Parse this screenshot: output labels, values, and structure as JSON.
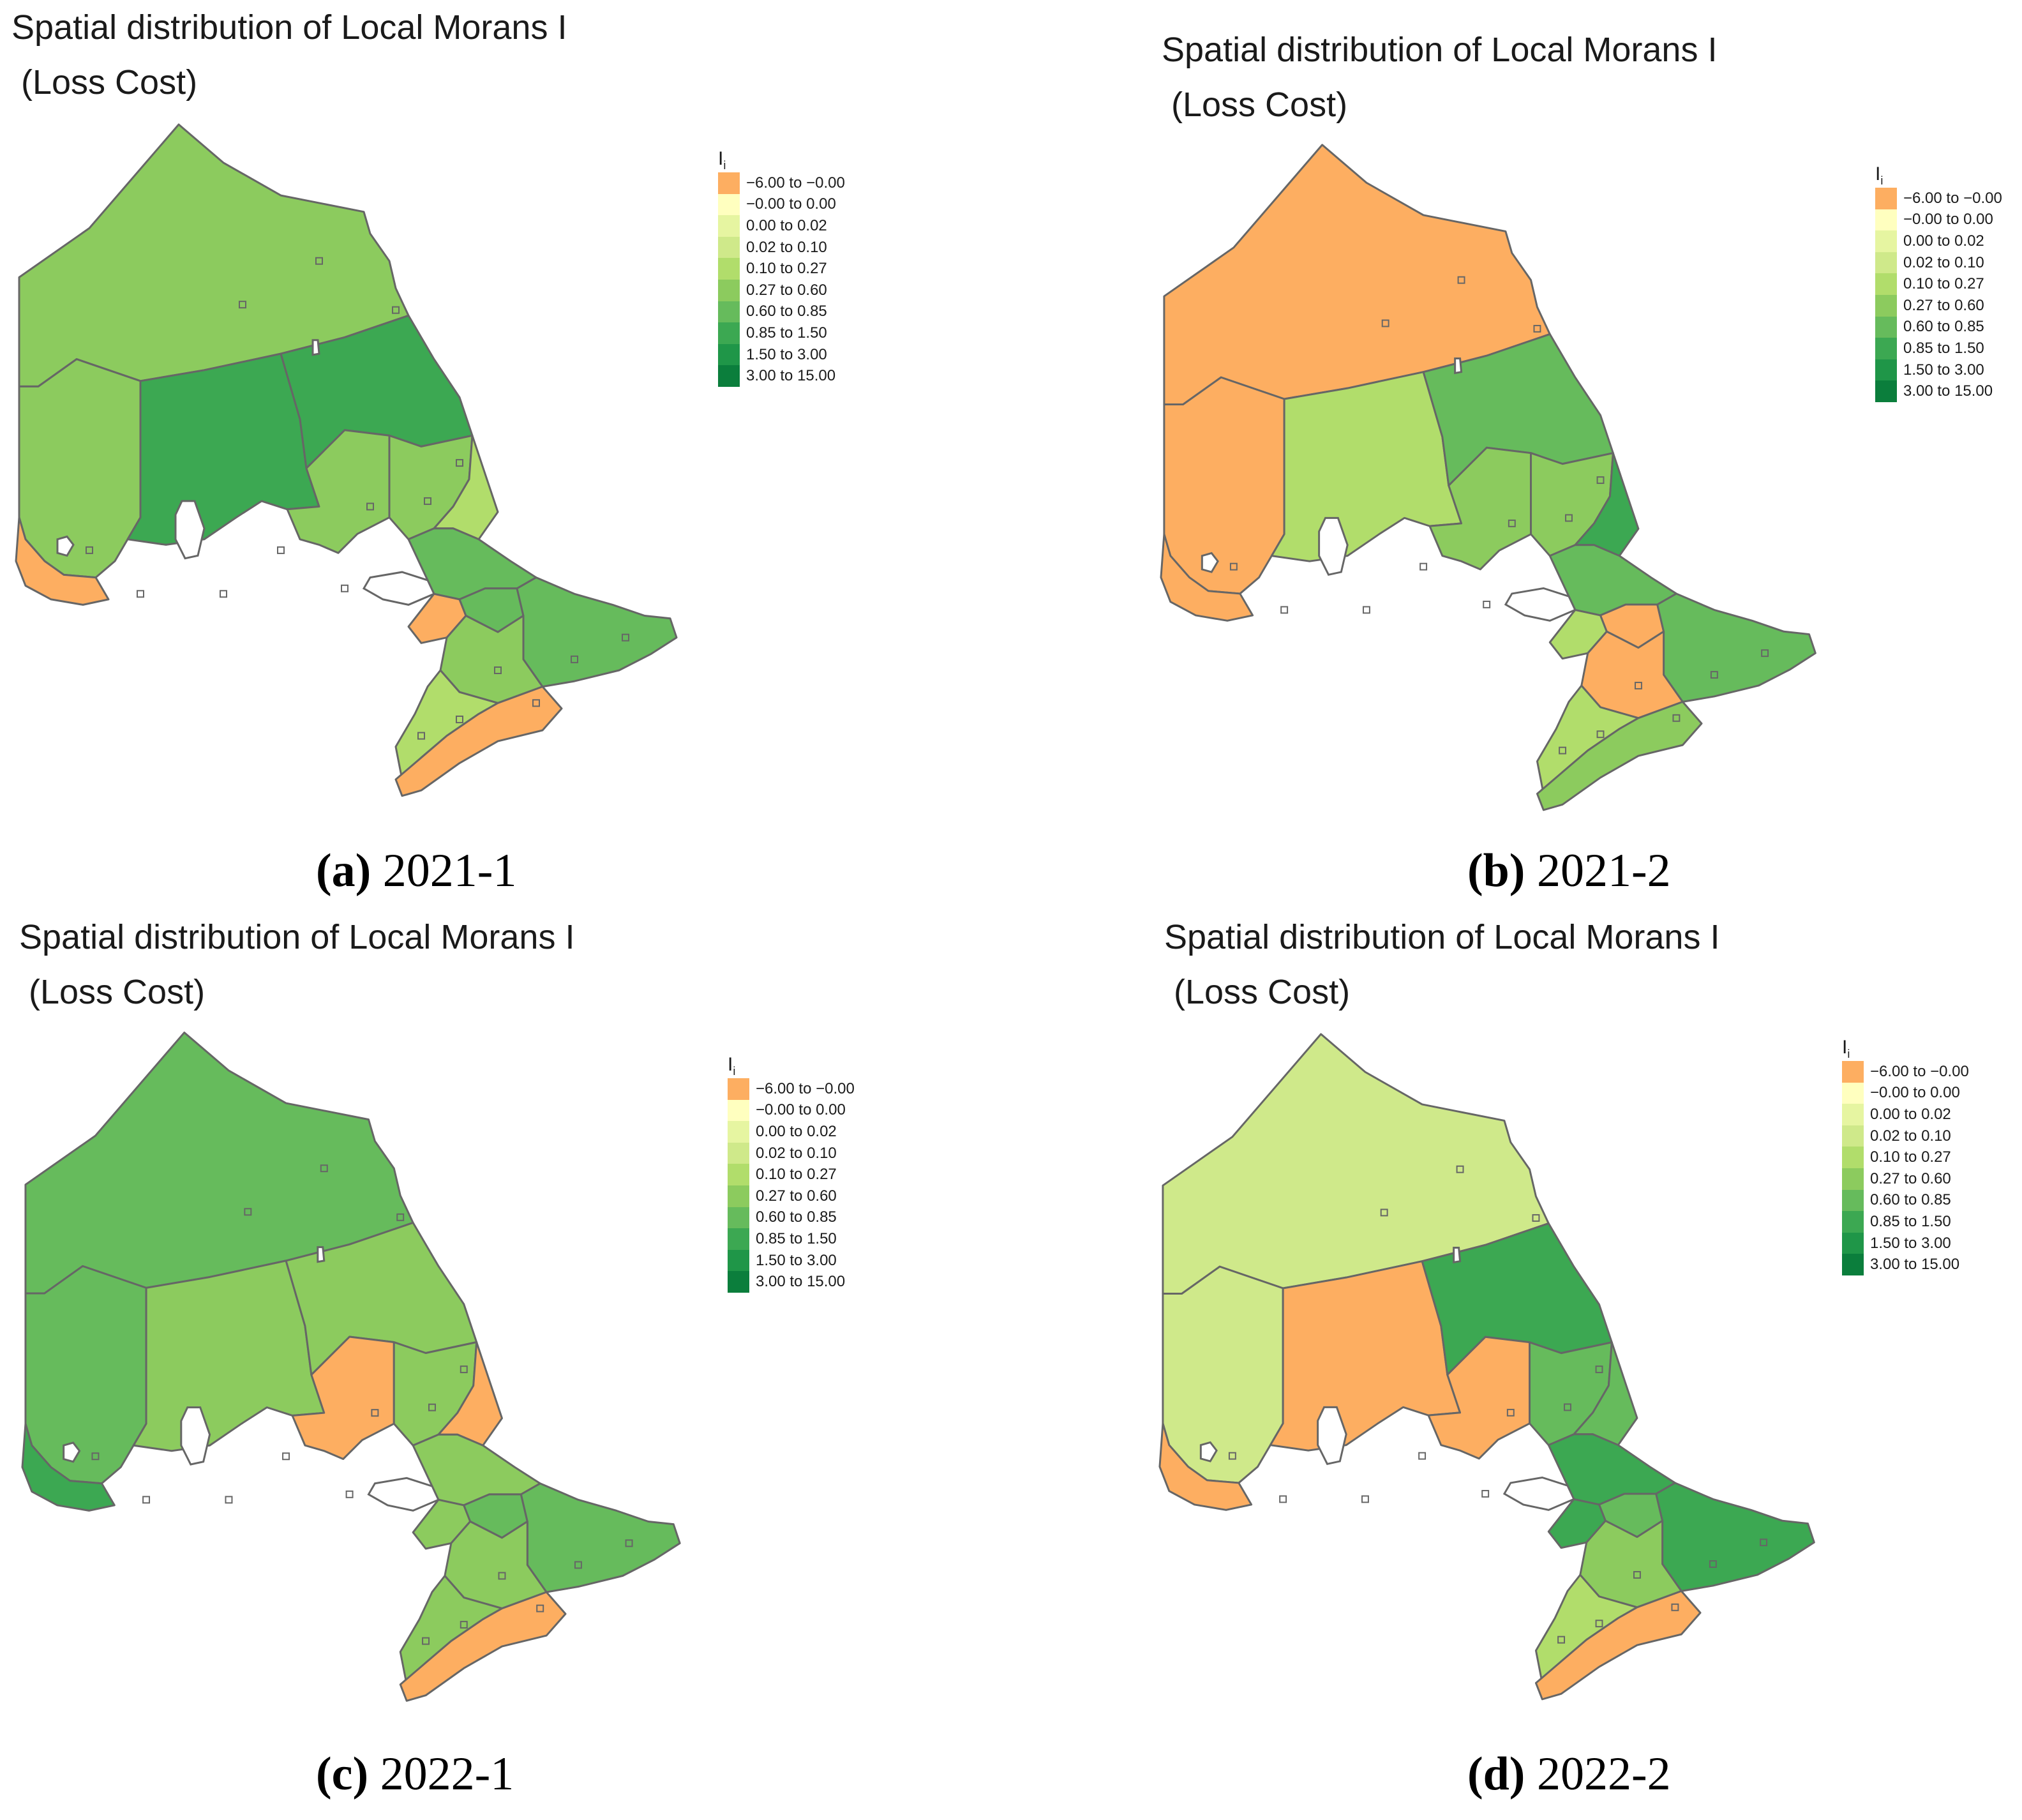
{
  "legend": {
    "title": "I",
    "title_sub": "i",
    "classes": [
      {
        "label": "−6.00 to −0.00",
        "color": "#fdae61"
      },
      {
        "label": "−0.00 to 0.00",
        "color": "#ffffbf"
      },
      {
        "label": "0.00 to 0.02",
        "color": "#e6f5a1"
      },
      {
        "label": "0.02 to 0.10",
        "color": "#cfe98a"
      },
      {
        "label": "0.10 to 0.27",
        "color": "#b1dd6b"
      },
      {
        "label": "0.27 to 0.60",
        "color": "#8ccb5e"
      },
      {
        "label": "0.60 to 0.85",
        "color": "#66bb5c"
      },
      {
        "label": "0.85 to 1.50",
        "color": "#3ca852"
      },
      {
        "label": "1.50 to 3.00",
        "color": "#1f9648"
      },
      {
        "label": "3.00 to 15.00",
        "color": "#0b7e3c"
      }
    ]
  },
  "boundary_color": "#666666",
  "panels": [
    {
      "title_line1": "Spatial distribution of Local Morans I",
      "title_line2": " (Loss Cost)",
      "caption_letter": "(a)",
      "caption_text": " 2021-1",
      "region_classes": {
        "far_north": 5,
        "northwest": 5,
        "rainy_river": 0,
        "thunder_bay": 7,
        "cochrane": 7,
        "algoma": 5,
        "sudbury": 5,
        "timiskaming": 4,
        "nipissing": 6,
        "parry_sound": 0,
        "muskoka": 6,
        "eastern": 6,
        "central": 5,
        "southwest": 4,
        "niagara": 0
      }
    },
    {
      "title_line1": "Spatial distribution of Local Morans I",
      "title_line2": " (Loss Cost)",
      "caption_letter": "(b)",
      "caption_text": " 2021-2",
      "region_classes": {
        "far_north": 0,
        "northwest": 0,
        "rainy_river": 0,
        "thunder_bay": 4,
        "cochrane": 6,
        "algoma": 5,
        "sudbury": 5,
        "timiskaming": 7,
        "nipissing": 6,
        "parry_sound": 4,
        "muskoka": 0,
        "eastern": 6,
        "central": 0,
        "southwest": 4,
        "niagara": 5
      }
    },
    {
      "title_line1": "Spatial distribution of Local Morans I",
      "title_line2": " (Loss Cost)",
      "caption_letter": "(c)",
      "caption_text": " 2022-1",
      "region_classes": {
        "far_north": 6,
        "northwest": 6,
        "rainy_river": 7,
        "thunder_bay": 5,
        "cochrane": 5,
        "algoma": 0,
        "sudbury": 5,
        "timiskaming": 0,
        "nipissing": 5,
        "parry_sound": 5,
        "muskoka": 6,
        "eastern": 6,
        "central": 5,
        "southwest": 5,
        "niagara": 0
      }
    },
    {
      "title_line1": "Spatial distribution of Local Morans I",
      "title_line2": " (Loss Cost)",
      "caption_letter": "(d)",
      "caption_text": " 2022-2",
      "region_classes": {
        "far_north": 3,
        "northwest": 3,
        "rainy_river": 0,
        "thunder_bay": 0,
        "cochrane": 7,
        "algoma": 0,
        "sudbury": 6,
        "timiskaming": 6,
        "nipissing": 7,
        "parry_sound": 7,
        "muskoka": 6,
        "eastern": 7,
        "central": 5,
        "southwest": 4,
        "niagara": 0
      }
    }
  ]
}
